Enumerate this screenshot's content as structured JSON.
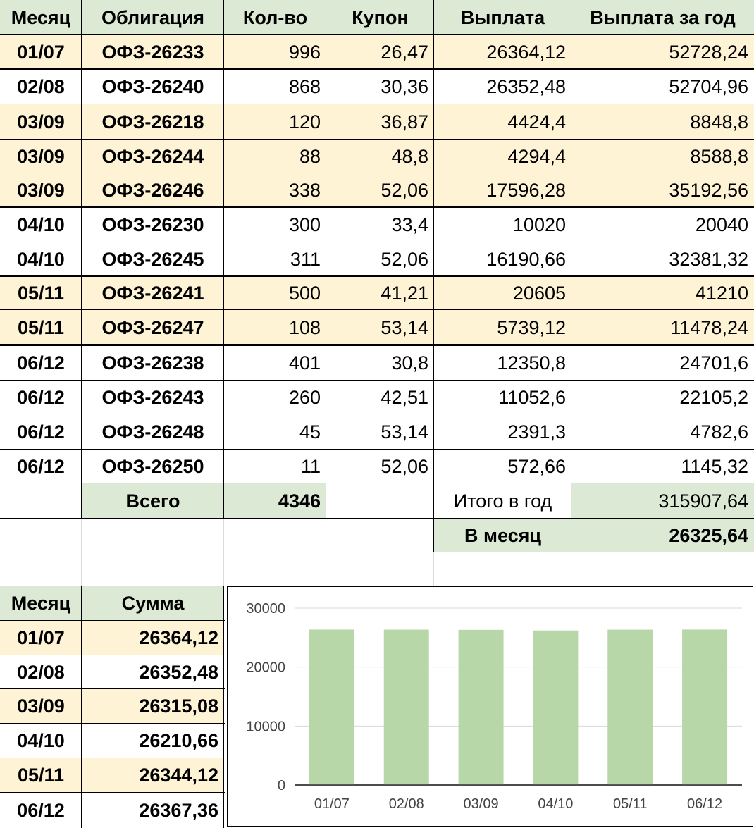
{
  "main_table": {
    "headers": [
      "Месяц",
      "Облигация",
      "Кол-во",
      "Купон",
      "Выплата",
      "Выплата за год"
    ],
    "rows": [
      {
        "month": "01/07",
        "bond": "ОФЗ-26233",
        "qty": "996",
        "coupon": "26,47",
        "payment": "26364,12",
        "annual": "52728,24"
      },
      {
        "month": "02/08",
        "bond": "ОФЗ-26240",
        "qty": "868",
        "coupon": "30,36",
        "payment": "26352,48",
        "annual": "52704,96"
      },
      {
        "month": "03/09",
        "bond": "ОФЗ-26218",
        "qty": "120",
        "coupon": "36,87",
        "payment": "4424,4",
        "annual": "8848,8"
      },
      {
        "month": "03/09",
        "bond": "ОФЗ-26244",
        "qty": "88",
        "coupon": "48,8",
        "payment": "4294,4",
        "annual": "8588,8"
      },
      {
        "month": "03/09",
        "bond": "ОФЗ-26246",
        "qty": "338",
        "coupon": "52,06",
        "payment": "17596,28",
        "annual": "35192,56"
      },
      {
        "month": "04/10",
        "bond": "ОФЗ-26230",
        "qty": "300",
        "coupon": "33,4",
        "payment": "10020",
        "annual": "20040"
      },
      {
        "month": "04/10",
        "bond": "ОФЗ-26245",
        "qty": "311",
        "coupon": "52,06",
        "payment": "16190,66",
        "annual": "32381,32"
      },
      {
        "month": "05/11",
        "bond": "ОФЗ-26241",
        "qty": "500",
        "coupon": "41,21",
        "payment": "20605",
        "annual": "41210"
      },
      {
        "month": "05/11",
        "bond": "ОФЗ-26247",
        "qty": "108",
        "coupon": "53,14",
        "payment": "5739,12",
        "annual": "11478,24"
      },
      {
        "month": "06/12",
        "bond": "ОФЗ-26238",
        "qty": "401",
        "coupon": "30,8",
        "payment": "12350,8",
        "annual": "24701,6"
      },
      {
        "month": "06/12",
        "bond": "ОФЗ-26243",
        "qty": "260",
        "coupon": "42,51",
        "payment": "11052,6",
        "annual": "22105,2"
      },
      {
        "month": "06/12",
        "bond": "ОФЗ-26248",
        "qty": "45",
        "coupon": "53,14",
        "payment": "2391,3",
        "annual": "4782,6"
      },
      {
        "month": "06/12",
        "bond": "ОФЗ-26250",
        "qty": "11",
        "coupon": "52,06",
        "payment": "572,66",
        "annual": "1145,32"
      }
    ],
    "totals": {
      "total_label": "Всего",
      "total_qty": "4346",
      "year_label": "Итого в год",
      "year_value": "315907,64",
      "month_label": "В месяц",
      "month_value": "26325,64"
    }
  },
  "summary_table": {
    "headers": [
      "Месяц",
      "Сумма"
    ],
    "rows": [
      {
        "month": "01/07",
        "sum": "26364,12"
      },
      {
        "month": "02/08",
        "sum": "26352,48"
      },
      {
        "month": "03/09",
        "sum": "26315,08"
      },
      {
        "month": "04/10",
        "sum": "26210,66"
      },
      {
        "month": "05/11",
        "sum": "26344,12"
      },
      {
        "month": "06/12",
        "sum": "26367,36"
      }
    ]
  },
  "colors": {
    "highlight_row": "#fff3d6",
    "header_green": "#dce9d5",
    "bar": "#b7d7a8",
    "grid": "#d9d9d9"
  },
  "chart_data": {
    "type": "bar",
    "title": "",
    "xlabel": "",
    "ylabel": "",
    "categories": [
      "01/07",
      "02/08",
      "03/09",
      "04/10",
      "05/11",
      "06/12"
    ],
    "values": [
      26364.12,
      26352.48,
      26315.08,
      26210.66,
      26344.12,
      26367.36
    ],
    "yticks": [
      "0",
      "10000",
      "20000",
      "30000"
    ],
    "ylim": [
      0,
      30000
    ],
    "grid": true,
    "legend": "none"
  }
}
